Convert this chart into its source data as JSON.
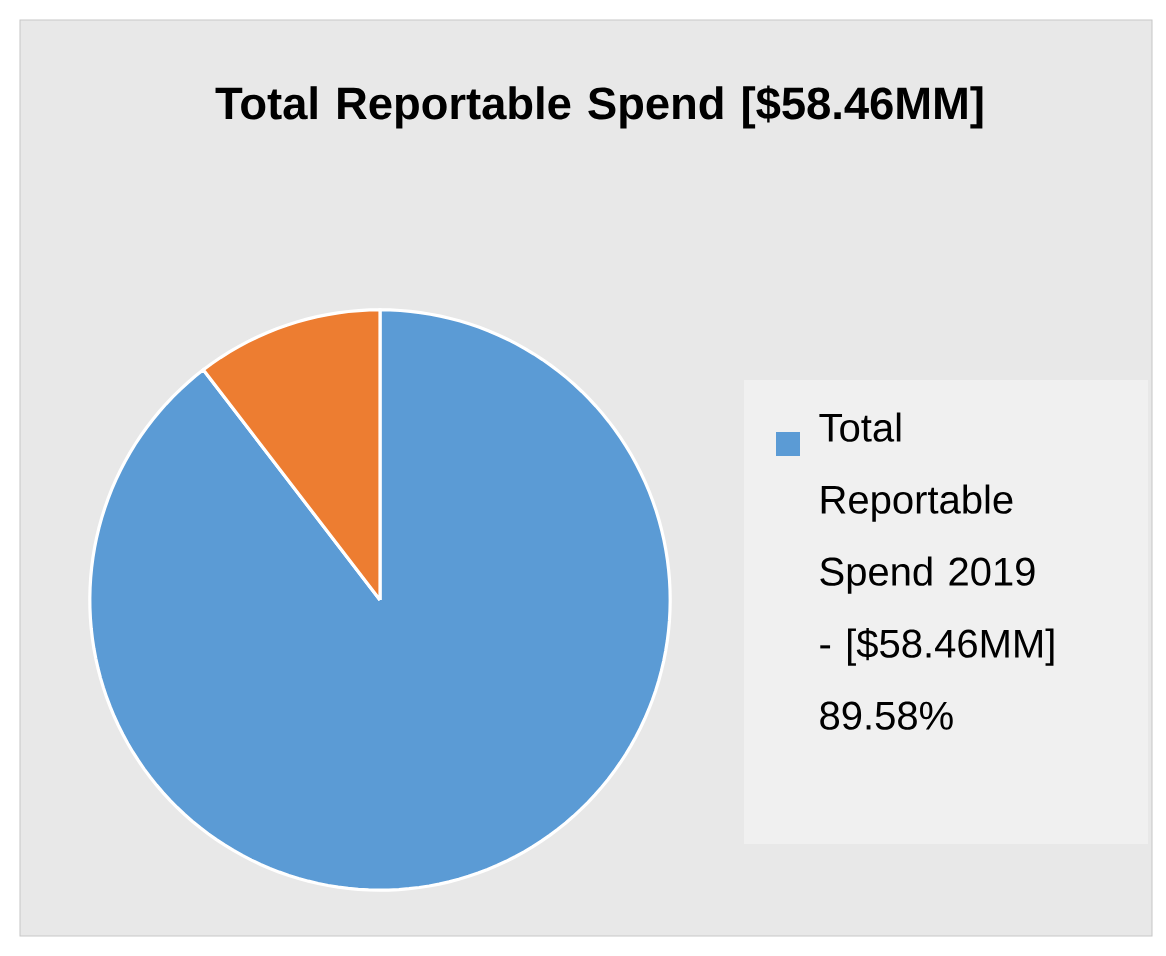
{
  "chart_data": {
    "type": "pie",
    "title": "Total Reportable Spend [$58.46MM]",
    "categories": [
      "Total Reportable Spend 2019 - [$58.46MM] 89.58%",
      null
    ],
    "values": [
      89.58,
      10.42
    ],
    "colors": [
      "#5b9bd5",
      "#ed7d31"
    ],
    "legend": "right"
  }
}
